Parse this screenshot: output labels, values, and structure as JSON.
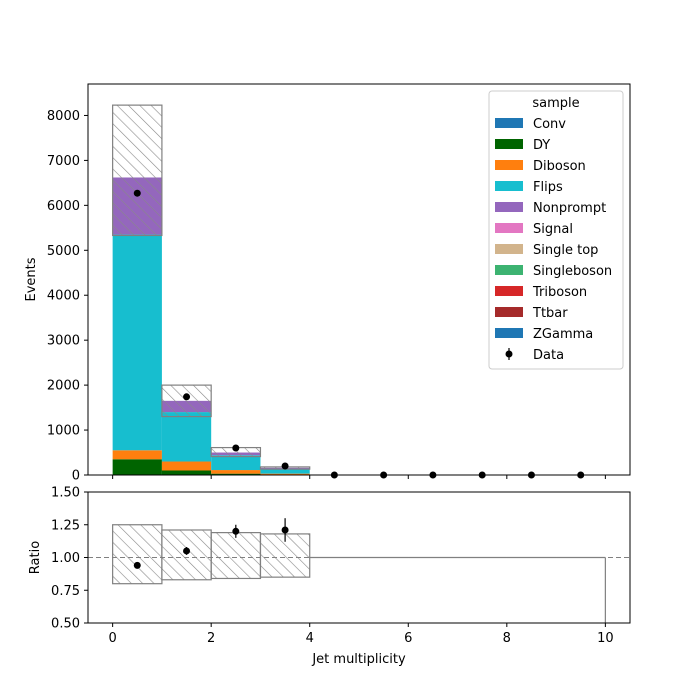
{
  "chart_data": [
    {
      "type": "bar",
      "stacked": true,
      "bin_edges": [
        0,
        1,
        2,
        3,
        4,
        5,
        6,
        7,
        8,
        9,
        10
      ],
      "xlim": [
        -0.5,
        10.5
      ],
      "ylim": [
        0,
        8700
      ],
      "ylabel": "Events",
      "yticks": [
        0,
        1000,
        2000,
        3000,
        4000,
        5000,
        6000,
        7000,
        8000
      ],
      "legend": {
        "title": "sample",
        "placement": "top-right"
      },
      "series": [
        {
          "name": "Conv",
          "color": "#1f77b4",
          "values": [
            0,
            0,
            0,
            0,
            0,
            0,
            0,
            0,
            0,
            0
          ]
        },
        {
          "name": "DY",
          "color": "#006400",
          "values": [
            350,
            100,
            30,
            10,
            0,
            0,
            0,
            0,
            0,
            0
          ]
        },
        {
          "name": "Diboson",
          "color": "#ff7f0e",
          "values": [
            200,
            200,
            80,
            20,
            0,
            0,
            0,
            0,
            0,
            0
          ]
        },
        {
          "name": "Flips",
          "color": "#17becf",
          "values": [
            4800,
            1100,
            330,
            110,
            0,
            0,
            0,
            0,
            0,
            0
          ]
        },
        {
          "name": "Nonprompt",
          "color": "#9467bd",
          "values": [
            1270,
            250,
            60,
            20,
            0,
            0,
            0,
            0,
            0,
            0
          ]
        },
        {
          "name": "Signal",
          "color": "#e377c2",
          "values": [
            0,
            0,
            0,
            0,
            0,
            0,
            0,
            0,
            0,
            0
          ]
        },
        {
          "name": "Single top",
          "color": "#d2b48c",
          "values": [
            0,
            0,
            0,
            0,
            0,
            0,
            0,
            0,
            0,
            0
          ]
        },
        {
          "name": "Singleboson",
          "color": "#3cb371",
          "values": [
            0,
            0,
            0,
            0,
            0,
            0,
            0,
            0,
            0,
            0
          ]
        },
        {
          "name": "Triboson",
          "color": "#d62728",
          "values": [
            0,
            0,
            0,
            0,
            0,
            0,
            0,
            0,
            0,
            0
          ]
        },
        {
          "name": "Ttbar",
          "color": "#a52a2a",
          "values": [
            0,
            0,
            0,
            0,
            0,
            0,
            0,
            0,
            0,
            0
          ]
        },
        {
          "name": "ZGamma",
          "color": "#1f77b4",
          "values": [
            0,
            0,
            0,
            0,
            0,
            0,
            0,
            0,
            0,
            0
          ]
        }
      ],
      "uncertainty_band": {
        "low": [
          5330,
          1300,
          410,
          130,
          0,
          0,
          0,
          0,
          0,
          0
        ],
        "high": [
          8230,
          2000,
          610,
          180,
          0,
          0,
          0,
          0,
          0,
          0
        ]
      },
      "data": {
        "name": "Data",
        "x": [
          0.5,
          1.5,
          2.5,
          3.5,
          4.5,
          5.5,
          6.5,
          7.5,
          8.5,
          9.5
        ],
        "y": [
          6270,
          1740,
          600,
          200,
          0,
          0,
          0,
          0,
          0,
          0
        ]
      }
    },
    {
      "type": "scatter",
      "xlabel": "Jet multiplicity",
      "ylabel": "Ratio",
      "xlim": [
        -0.5,
        10.5
      ],
      "ylim": [
        0.5,
        1.5
      ],
      "xticks": [
        0,
        2,
        4,
        6,
        8,
        10
      ],
      "yticks": [
        0.5,
        0.75,
        1.0,
        1.25,
        1.5
      ],
      "reference_line": 1.0,
      "band": {
        "low": [
          0.8,
          0.83,
          0.84,
          0.85,
          1.0,
          1.0,
          1.0,
          1.0,
          1.0,
          1.0
        ],
        "high": [
          1.25,
          1.21,
          1.19,
          1.18,
          1.0,
          1.0,
          1.0,
          1.0,
          1.0,
          1.0
        ]
      },
      "points": {
        "x": [
          0.5,
          1.5,
          2.5,
          3.5
        ],
        "y": [
          0.94,
          1.05,
          1.2,
          1.21
        ],
        "err": [
          0.02,
          0.03,
          0.05,
          0.09
        ]
      }
    }
  ]
}
